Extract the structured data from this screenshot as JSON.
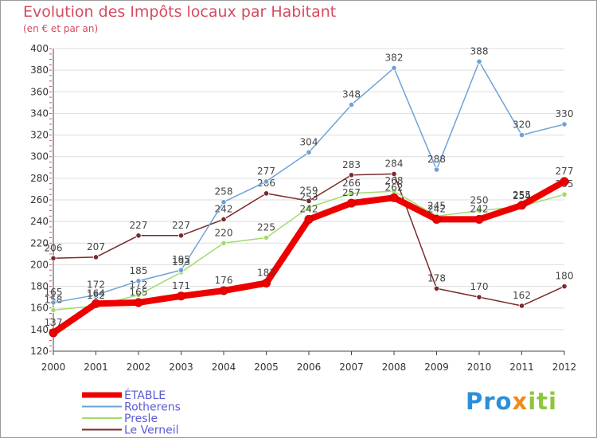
{
  "title": "Evolution des Impôts locaux par Habitant",
  "subtitle": "(en € et par an)",
  "logo_text": "Proxiti",
  "colors": {
    "background": "#ffffff",
    "plot_bg": "#ffffff",
    "grid": "#dddddd",
    "title": "#d64a5e",
    "legend_text": "#5b5bd6"
  },
  "chart_data": {
    "type": "line",
    "title": "Evolution des Impôts locaux par Habitant",
    "subtitle": "(en € et par an)",
    "xlabel": "",
    "ylabel": "",
    "ylim": [
      120,
      400
    ],
    "yticks": [
      120,
      140,
      160,
      180,
      200,
      220,
      240,
      260,
      280,
      300,
      320,
      340,
      360,
      380,
      400
    ],
    "categories": [
      "2000",
      "2001",
      "2002",
      "2003",
      "2004",
      "2005",
      "2006",
      "2007",
      "2008",
      "2009",
      "2010",
      "2011",
      "2012"
    ],
    "legend_position": "bottom-left",
    "series": [
      {
        "name": "Le Verneil",
        "color": "#7a2a2a",
        "values": [
          206,
          207,
          227,
          227,
          242,
          266,
          259,
          283,
          284,
          178,
          170,
          162,
          180
        ]
      },
      {
        "name": "Presle",
        "color": "#9fdc6c",
        "values": [
          158,
          162,
          172,
          193,
          220,
          225,
          253,
          266,
          268,
          245,
          250,
          254,
          265
        ]
      },
      {
        "name": "Rotherens",
        "color": "#6da2d6",
        "values": [
          165,
          172,
          185,
          195,
          258,
          277,
          304,
          348,
          382,
          288,
          388,
          320,
          330
        ]
      },
      {
        "name": "ÉTABLE",
        "color": "#ee0000",
        "values": [
          137,
          164,
          165,
          171,
          176,
          183,
          242,
          257,
          262,
          242,
          242,
          255,
          277
        ]
      }
    ]
  }
}
